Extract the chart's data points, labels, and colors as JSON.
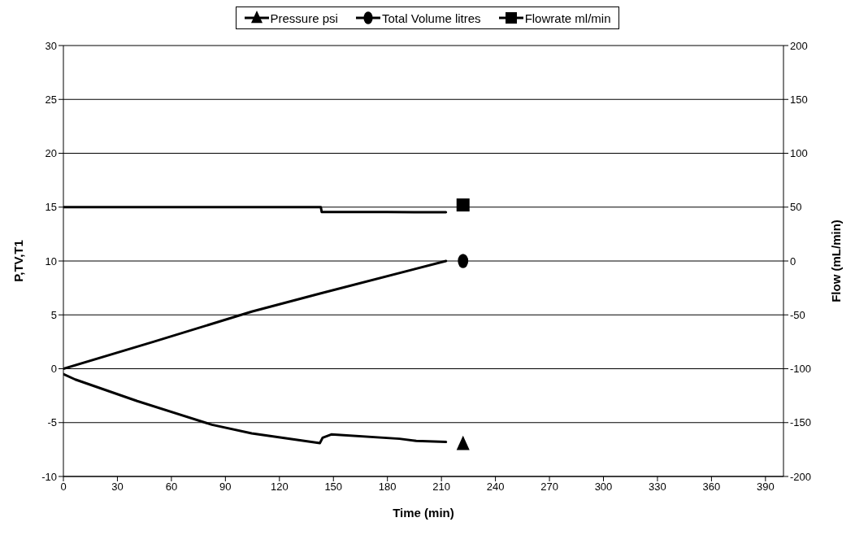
{
  "chart_data": {
    "type": "line",
    "xlabel": "Time (min)",
    "ylabel": "P,TV,T1",
    "y2label": "Flow (mL/min)",
    "xlim": [
      0,
      400
    ],
    "xticks": [
      0,
      30,
      60,
      90,
      120,
      150,
      180,
      210,
      240,
      270,
      300,
      330,
      360,
      390
    ],
    "ylim": [
      -10,
      30
    ],
    "yticks": [
      -10,
      -5,
      0,
      5,
      10,
      15,
      20,
      25,
      30
    ],
    "y2lim": [
      -200,
      200
    ],
    "y2ticks": [
      -200,
      -150,
      -100,
      -50,
      0,
      50,
      100,
      150,
      200
    ],
    "grid": "y",
    "legend": "top",
    "line_style": "solid",
    "series": [
      {
        "name": "Pressure psi",
        "color": "#000000",
        "x": [
          0,
          6.6,
          41,
          82.5,
          104.6,
          142.5,
          144,
          148.8,
          186.7,
          196,
          212.5
        ],
        "values": [
          -0.5,
          -1.0,
          -3.0,
          -5.2,
          -6.0,
          -6.9,
          -6.4,
          -6.1,
          -6.5,
          -6.7,
          -6.8
        ]
      },
      {
        "name": "Total Volume litres",
        "color": "#000000",
        "x": [
          0,
          50,
          104.6,
          143,
          212.5
        ],
        "values": [
          0,
          2.5,
          5.3,
          7.0,
          10.0
        ]
      },
      {
        "name": "Flowrate ml/min",
        "color": "#000000",
        "axis": "y2",
        "x": [
          0,
          143,
          143.5,
          180,
          212.5
        ],
        "values": [
          50,
          50,
          45.5,
          45.5,
          45.2
        ]
      },
      {
        "type": "scatter",
        "color": "#000000",
        "marker": "triangle",
        "x": [
          222
        ],
        "values": [
          -7.0
        ]
      },
      {
        "type": "scatter",
        "color": "#000000",
        "marker": "circle",
        "x": [
          222
        ],
        "values": [
          10.0
        ]
      },
      {
        "type": "scatter",
        "color": "#000000",
        "marker": "square",
        "axis": "y2",
        "x": [
          222
        ],
        "values": [
          52
        ]
      }
    ]
  }
}
